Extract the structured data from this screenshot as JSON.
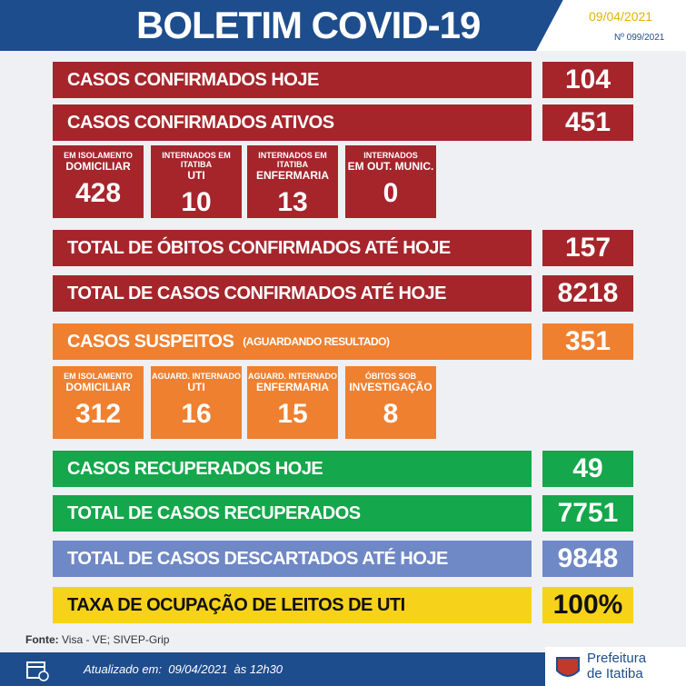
{
  "header": {
    "title": "BOLETIM COVID-19",
    "date": "09/04/2021",
    "number": "Nº 099/2021"
  },
  "bars": [
    {
      "label": "CASOS CONFIRMADOS HOJE",
      "value": "104"
    },
    {
      "label": "CASOS CONFIRMADOS ATIVOS",
      "value": "451"
    },
    {
      "label": "TOTAL DE ÓBITOS CONFIRMADOS ATÉ HOJE",
      "value": "157"
    },
    {
      "label": "TOTAL DE CASOS CONFIRMADOS ATÉ HOJE",
      "value": "8218"
    },
    {
      "label": "CASOS SUSPEITOS",
      "note": "(AGUARDANDO RESULTADO)",
      "value": "351"
    },
    {
      "label": "CASOS RECUPERADOS HOJE",
      "value": "49"
    },
    {
      "label": "TOTAL DE CASOS RECUPERADOS",
      "value": "7751"
    },
    {
      "label": "TOTAL DE CASOS DESCARTADOS ATÉ HOJE",
      "value": "9848"
    },
    {
      "label": "TAXA DE OCUPAÇÃO DE LEITOS DE UTI",
      "value": "100%"
    }
  ],
  "active_boxes": [
    {
      "top": "EM ISOLAMENTO",
      "main": "DOMICILIAR",
      "value": "428"
    },
    {
      "top": "INTERNADOS EM ITATIBA",
      "main": "UTI",
      "value": "10"
    },
    {
      "top": "INTERNADOS EM ITATIBA",
      "main": "ENFERMARIA",
      "value": "13"
    },
    {
      "top": "INTERNADOS",
      "main": "EM OUT. MUNIC.",
      "value": "0"
    }
  ],
  "suspect_boxes": [
    {
      "top": "EM ISOLAMENTO",
      "main": "DOMICILIAR",
      "value": "312"
    },
    {
      "top": "AGUARD. INTERNADO",
      "main": "UTI",
      "value": "16"
    },
    {
      "top": "AGUARD. INTERNADO",
      "main": "ENFERMARIA",
      "value": "15"
    },
    {
      "top": "ÓBITOS SOB",
      "main": "INVESTIGAÇÃO",
      "value": "8"
    }
  ],
  "source": {
    "label": "Fonte:",
    "text": "Visa - VE; SIVEP-Grip"
  },
  "footer": {
    "updated_label": "Atualizado em:",
    "updated_date": "09/04/2021",
    "updated_time": "às 12h30",
    "logo_line1": "Prefeitura",
    "logo_line2": "de Itatiba"
  }
}
